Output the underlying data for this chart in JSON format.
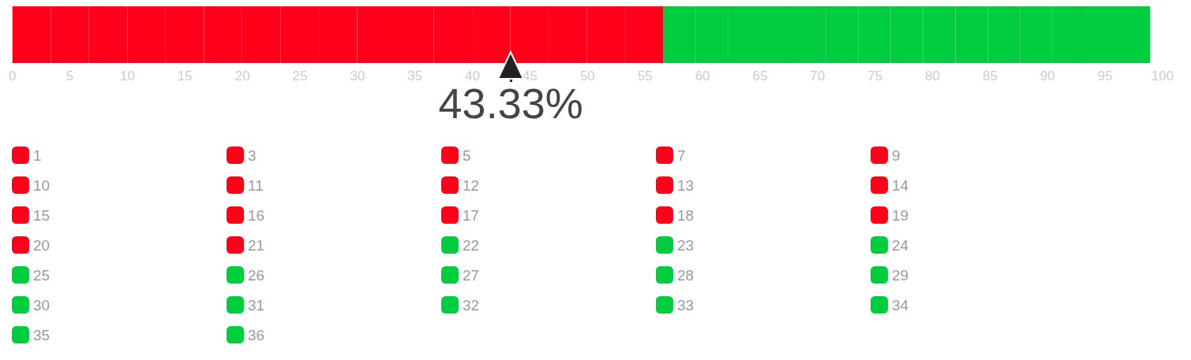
{
  "chart_data": {
    "type": "bar",
    "orientation": "horizontal",
    "stacked": true,
    "categories": [
      null
    ],
    "xlim": [
      0,
      100
    ],
    "xticks": [
      0,
      5,
      10,
      15,
      20,
      25,
      30,
      35,
      40,
      45,
      50,
      55,
      60,
      65,
      70,
      75,
      80,
      85,
      90,
      95,
      100
    ],
    "tick_labels": "x",
    "grid": false,
    "legend": "bottom left",
    "ref_lines": [
      {
        "axis": "x",
        "value": 43.33,
        "label": "43.33%"
      }
    ],
    "series": [
      {
        "name": "1",
        "color": "#ff001b",
        "values": [
          3.33
        ]
      },
      {
        "name": "3",
        "color": "#ff001b",
        "values": [
          3.33
        ]
      },
      {
        "name": "5",
        "color": "#ff001b",
        "values": [
          3.33
        ]
      },
      {
        "name": "7",
        "color": "#ff001b",
        "values": [
          3.33
        ]
      },
      {
        "name": "9",
        "color": "#ff001b",
        "values": [
          3.33
        ]
      },
      {
        "name": "10",
        "color": "#ff001b",
        "values": [
          3.33
        ]
      },
      {
        "name": "11",
        "color": "#ff001b",
        "values": [
          3.33
        ]
      },
      {
        "name": "12",
        "color": "#ff001b",
        "values": [
          3.33
        ]
      },
      {
        "name": "13",
        "color": "#ff001b",
        "values": [
          3.33
        ]
      },
      {
        "name": "14",
        "color": "#ff001b",
        "values": [
          3.33
        ]
      },
      {
        "name": "15",
        "color": "#ff001b",
        "values": [
          3.33
        ]
      },
      {
        "name": "16",
        "color": "#ff001b",
        "values": [
          3.33
        ]
      },
      {
        "name": "17",
        "color": "#ff001b",
        "values": [
          3.33
        ]
      },
      {
        "name": "18",
        "color": "#ff001b",
        "values": [
          3.33
        ]
      },
      {
        "name": "19",
        "color": "#ff001b",
        "values": [
          3.33
        ]
      },
      {
        "name": "20",
        "color": "#ff001b",
        "values": [
          3.33
        ]
      },
      {
        "name": "21",
        "color": "#ff001b",
        "values": [
          3.33
        ]
      },
      {
        "name": "22",
        "color": "#00cc3f",
        "values": [
          2.82
        ]
      },
      {
        "name": "23",
        "color": "#00cc3f",
        "values": [
          2.82
        ]
      },
      {
        "name": "24",
        "color": "#00cc3f",
        "values": [
          2.82
        ]
      },
      {
        "name": "25",
        "color": "#00cc3f",
        "values": [
          2.82
        ]
      },
      {
        "name": "26",
        "color": "#00cc3f",
        "values": [
          2.82
        ]
      },
      {
        "name": "27",
        "color": "#00cc3f",
        "values": [
          2.82
        ]
      },
      {
        "name": "28",
        "color": "#00cc3f",
        "values": [
          2.82
        ]
      },
      {
        "name": "29",
        "color": "#00cc3f",
        "values": [
          2.82
        ]
      },
      {
        "name": "30",
        "color": "#00cc3f",
        "values": [
          2.82
        ]
      },
      {
        "name": "31",
        "color": "#00cc3f",
        "values": [
          2.82
        ]
      },
      {
        "name": "32",
        "color": "#00cc3f",
        "values": [
          2.82
        ]
      },
      {
        "name": "33",
        "color": "#00cc3f",
        "values": [
          2.82
        ]
      },
      {
        "name": "34",
        "color": "#00cc3f",
        "values": [
          2.82
        ]
      },
      {
        "name": "35",
        "color": "#00cc3f",
        "values": [
          2.82
        ]
      },
      {
        "name": "36",
        "color": "#00cc3f",
        "values": [
          2.82
        ]
      }
    ]
  }
}
